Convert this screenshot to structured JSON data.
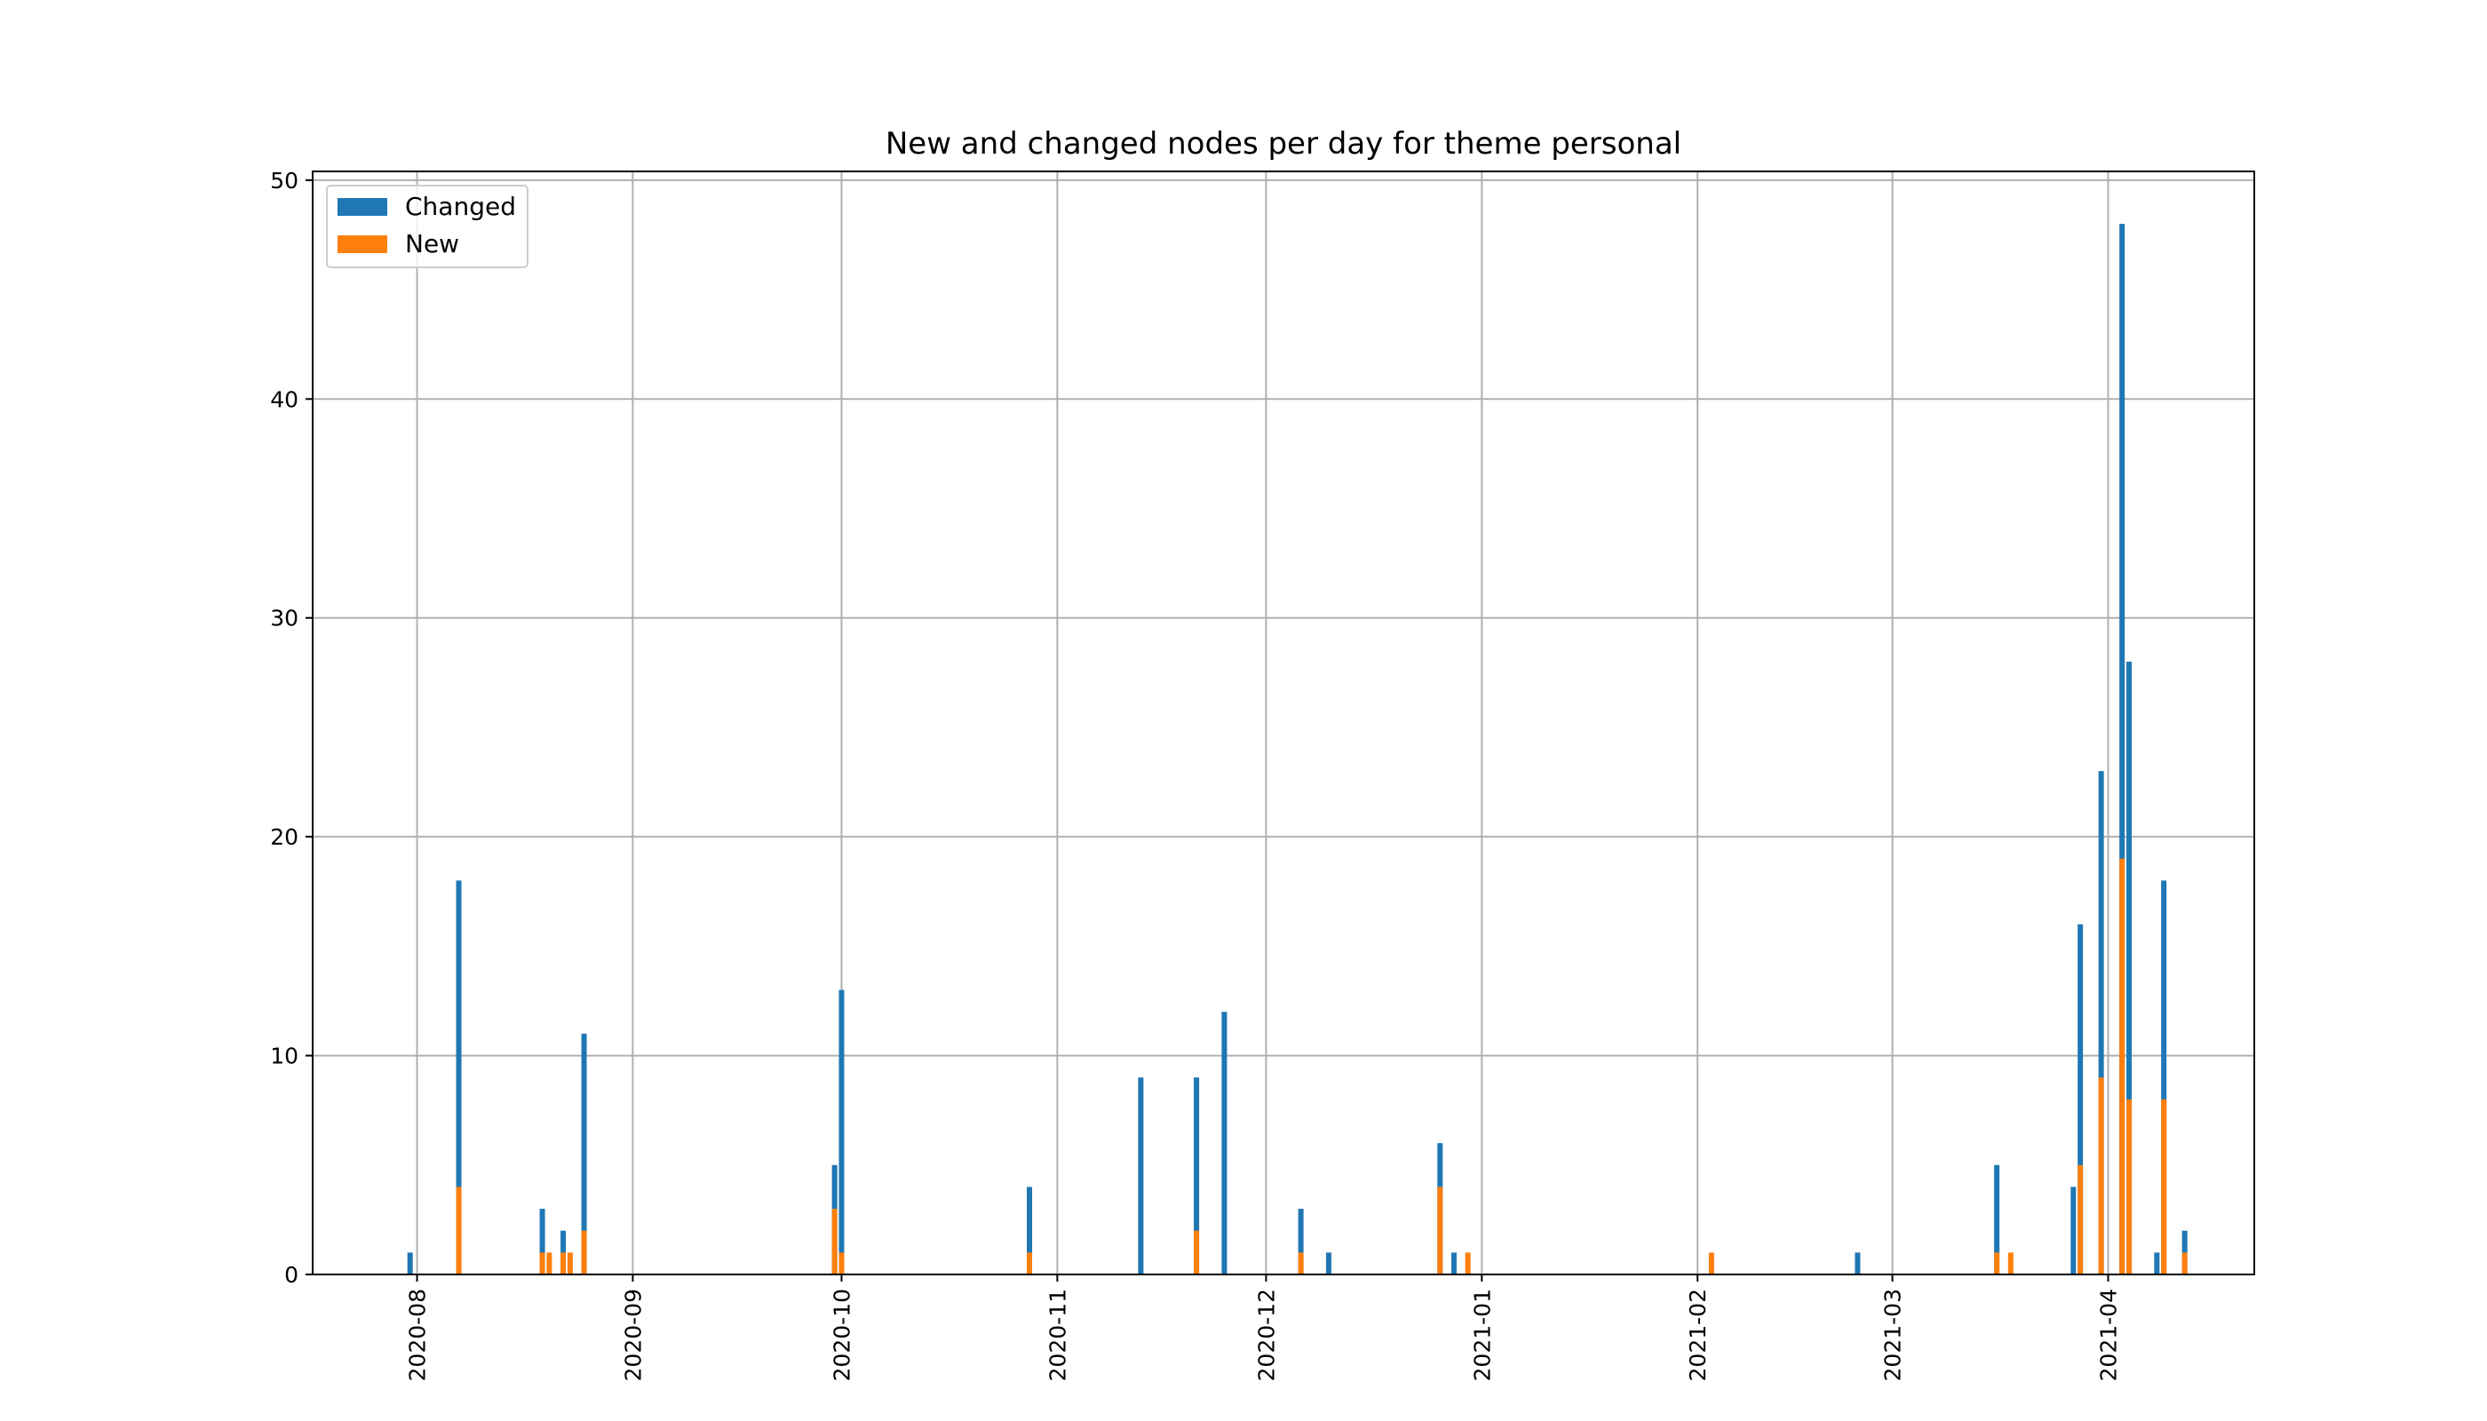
{
  "chart_data": {
    "type": "bar",
    "stacked": true,
    "title": "New and changed nodes per day for theme personal",
    "xlabel": "",
    "ylabel": "",
    "x_axis": "date",
    "xlim": [
      "2020-07-17",
      "2021-04-22"
    ],
    "ylim": [
      0,
      50.4
    ],
    "yticks": [
      0,
      10,
      20,
      30,
      40,
      50
    ],
    "xticks": [
      "2020-08",
      "2020-09",
      "2020-10",
      "2020-11",
      "2020-12",
      "2021-01",
      "2021-02",
      "2021-03",
      "2021-04"
    ],
    "grid": true,
    "legend_position": "upper left",
    "colors": {
      "Changed": "#1f77b4",
      "New": "#ff7f0e"
    },
    "series": [
      {
        "name": "Changed",
        "points": [
          [
            "2020-07-31",
            1
          ],
          [
            "2020-08-07",
            18
          ],
          [
            "2020-08-19",
            3
          ],
          [
            "2020-08-22",
            2
          ],
          [
            "2020-08-25",
            11
          ],
          [
            "2020-09-30",
            5
          ],
          [
            "2020-10-01",
            13
          ],
          [
            "2020-10-28",
            4
          ],
          [
            "2020-11-13",
            9
          ],
          [
            "2020-11-21",
            9
          ],
          [
            "2020-11-25",
            12
          ],
          [
            "2020-12-06",
            3
          ],
          [
            "2020-12-10",
            1
          ],
          [
            "2020-12-26",
            6
          ],
          [
            "2020-12-28",
            1
          ],
          [
            "2021-02-24",
            1
          ],
          [
            "2021-03-16",
            5
          ],
          [
            "2021-03-27",
            4
          ],
          [
            "2021-03-28",
            16
          ],
          [
            "2021-03-31",
            23
          ],
          [
            "2021-04-03",
            48
          ],
          [
            "2021-04-04",
            28
          ],
          [
            "2021-04-08",
            1
          ],
          [
            "2021-04-09",
            18
          ],
          [
            "2021-04-12",
            2
          ]
        ]
      },
      {
        "name": "New",
        "points": [
          [
            "2020-08-07",
            4
          ],
          [
            "2020-08-19",
            1
          ],
          [
            "2020-08-20",
            1
          ],
          [
            "2020-08-22",
            1
          ],
          [
            "2020-08-23",
            1
          ],
          [
            "2020-08-25",
            2
          ],
          [
            "2020-09-30",
            3
          ],
          [
            "2020-10-01",
            1
          ],
          [
            "2020-10-28",
            1
          ],
          [
            "2020-11-21",
            2
          ],
          [
            "2020-12-06",
            1
          ],
          [
            "2020-12-26",
            4
          ],
          [
            "2020-12-30",
            1
          ],
          [
            "2021-02-03",
            1
          ],
          [
            "2021-03-16",
            1
          ],
          [
            "2021-03-18",
            1
          ],
          [
            "2021-03-28",
            5
          ],
          [
            "2021-03-31",
            9
          ],
          [
            "2021-04-03",
            19
          ],
          [
            "2021-04-04",
            8
          ],
          [
            "2021-04-09",
            8
          ],
          [
            "2021-04-12",
            1
          ]
        ]
      }
    ]
  }
}
